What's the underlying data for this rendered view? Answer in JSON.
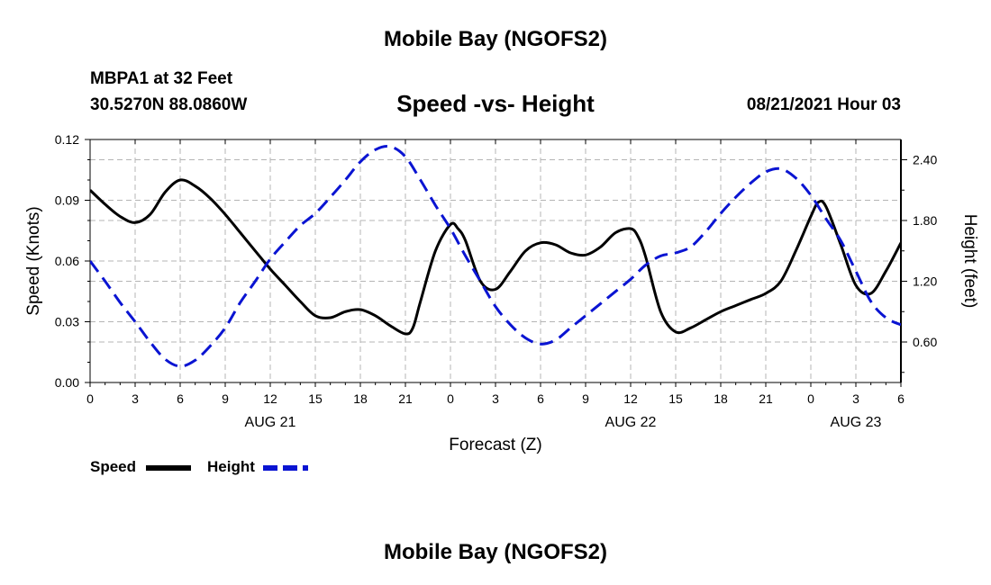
{
  "header": {
    "title": "Mobile Bay (NGOFS2)",
    "station": "MBPA1 at 32 Feet",
    "coords": "30.5270N  88.0860W",
    "subtitle": "Speed -vs- Height",
    "datetime": "08/21/2021 Hour 03"
  },
  "footer": {
    "title": "Mobile Bay (NGOFS2)"
  },
  "colors": {
    "speed": "#000000",
    "height": "#0a14d2",
    "grid": "#b4b4b4"
  },
  "chart_data": {
    "type": "line",
    "xlabel": "Forecast (Z)",
    "ylabel_left": "Speed (Knots)",
    "ylabel_right": "Height (feet)",
    "x_unit": "hours from 00Z AUG 21",
    "xlim": [
      0,
      54
    ],
    "ylim_left": [
      0,
      0.12
    ],
    "ylim_right": [
      0.2,
      2.6
    ],
    "x_ticks": [
      0,
      3,
      6,
      9,
      12,
      15,
      18,
      21,
      24,
      27,
      30,
      33,
      36,
      39,
      42,
      45,
      48,
      51,
      54
    ],
    "x_tick_labels": [
      "0",
      "3",
      "6",
      "9",
      "12",
      "15",
      "18",
      "21",
      "0",
      "3",
      "6",
      "9",
      "12",
      "15",
      "18",
      "21",
      "0",
      "3",
      "6"
    ],
    "date_labels": [
      {
        "x": 12,
        "label": "AUG 21"
      },
      {
        "x": 36,
        "label": "AUG 22"
      },
      {
        "x": 51,
        "label": "AUG 23"
      }
    ],
    "y_left_ticks": [
      0,
      0.03,
      0.06,
      0.09,
      0.12
    ],
    "y_left_tick_labels": [
      "0.00",
      "0.03",
      "0.06",
      "0.09",
      "0.12"
    ],
    "y_right_ticks": [
      0.6,
      1.2,
      1.8,
      2.4
    ],
    "y_right_tick_labels": [
      "0.60",
      "1.20",
      "1.80",
      "2.40"
    ],
    "grid": true,
    "legend": "bottom-left",
    "series": [
      {
        "name": "Speed",
        "axis": "left",
        "style": "solid",
        "x": [
          0,
          1,
          2,
          3,
          4,
          5,
          6,
          7,
          8,
          9,
          10,
          11,
          12,
          13,
          14,
          15,
          16,
          17,
          18,
          19,
          20,
          21,
          21.5,
          22,
          23,
          24,
          24.5,
          25,
          26,
          27,
          28,
          29,
          30,
          31,
          32,
          33,
          34,
          35,
          36,
          36.5,
          37,
          38,
          39,
          40,
          41,
          42,
          43,
          44,
          45,
          46,
          47,
          48,
          48.5,
          49,
          50,
          51,
          52,
          53,
          54
        ],
        "values": [
          0.095,
          0.088,
          0.082,
          0.079,
          0.083,
          0.094,
          0.1,
          0.097,
          0.091,
          0.083,
          0.074,
          0.065,
          0.056,
          0.048,
          0.04,
          0.033,
          0.032,
          0.035,
          0.036,
          0.033,
          0.028,
          0.024,
          0.027,
          0.04,
          0.065,
          0.078,
          0.076,
          0.07,
          0.05,
          0.046,
          0.055,
          0.065,
          0.069,
          0.068,
          0.064,
          0.063,
          0.067,
          0.074,
          0.076,
          0.072,
          0.062,
          0.035,
          0.025,
          0.027,
          0.031,
          0.035,
          0.038,
          0.041,
          0.044,
          0.05,
          0.065,
          0.082,
          0.089,
          0.087,
          0.068,
          0.048,
          0.044,
          0.055,
          0.069
        ]
      },
      {
        "name": "Height",
        "axis": "right",
        "style": "dashed",
        "x": [
          0,
          1,
          2,
          3,
          4,
          5,
          6,
          7,
          8,
          9,
          10,
          11,
          12,
          13,
          14,
          15,
          16,
          17,
          18,
          19,
          20,
          21,
          22,
          23,
          24,
          25,
          26,
          27,
          28,
          29,
          30,
          31,
          32,
          33,
          34,
          35,
          36,
          37,
          38,
          39,
          40,
          41,
          42,
          43,
          44,
          45,
          46,
          47,
          48,
          49,
          50,
          51,
          52,
          53,
          54
        ],
        "values": [
          1.4,
          1.2,
          0.99,
          0.8,
          0.6,
          0.43,
          0.36,
          0.42,
          0.56,
          0.74,
          0.99,
          1.2,
          1.42,
          1.59,
          1.75,
          1.87,
          2.03,
          2.2,
          2.38,
          2.5,
          2.53,
          2.43,
          2.2,
          1.95,
          1.72,
          1.45,
          1.2,
          0.95,
          0.77,
          0.64,
          0.58,
          0.62,
          0.74,
          0.86,
          0.98,
          1.1,
          1.22,
          1.36,
          1.45,
          1.48,
          1.54,
          1.69,
          1.87,
          2.03,
          2.17,
          2.28,
          2.31,
          2.22,
          2.05,
          1.82,
          1.6,
          1.3,
          1.0,
          0.84,
          0.77
        ]
      }
    ]
  }
}
